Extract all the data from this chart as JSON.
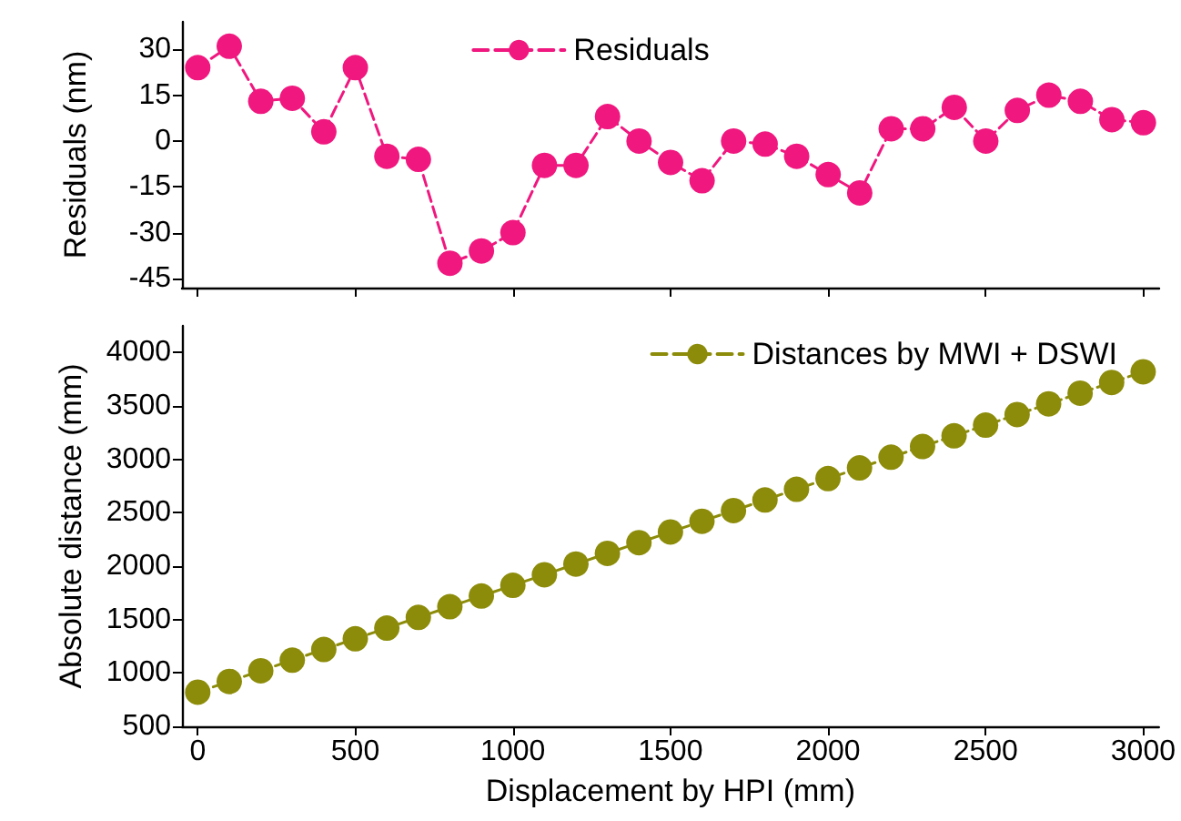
{
  "chart_data": [
    {
      "type": "line",
      "ylabel": "Residuals (nm)",
      "x": [
        0,
        100,
        200,
        300,
        400,
        500,
        600,
        700,
        800,
        900,
        1000,
        1100,
        1200,
        1300,
        1400,
        1500,
        1600,
        1700,
        1800,
        1900,
        2000,
        2100,
        2200,
        2300,
        2400,
        2500,
        2600,
        2700,
        2800,
        2900,
        3000
      ],
      "series": [
        {
          "name": "Residuals",
          "color": "#f0177f",
          "values": [
            24,
            31,
            13,
            14,
            3,
            24,
            -5,
            -6,
            -40,
            -36,
            -30,
            -8,
            -8,
            8,
            0,
            -7,
            -13,
            0,
            -1,
            -5,
            -11,
            -17,
            4,
            4,
            11,
            0,
            10,
            15,
            13,
            7,
            6
          ]
        }
      ],
      "xlim": [
        -50,
        3050
      ],
      "xticks": [
        0,
        500,
        1000,
        1500,
        2000,
        2500,
        3000
      ],
      "ylim": [
        -48,
        39
      ],
      "yticks": [
        -45,
        -30,
        -15,
        0,
        15,
        30
      ],
      "tick_labels": "y",
      "legend": "top",
      "marker": "circle",
      "line_style": "dashed",
      "grid": false
    },
    {
      "type": "line",
      "xlabel": "Displacement by HPI (mm)",
      "ylabel": "Absolute distance (mm)",
      "x": [
        0,
        100,
        200,
        300,
        400,
        500,
        600,
        700,
        800,
        900,
        1000,
        1100,
        1200,
        1300,
        1400,
        1500,
        1600,
        1700,
        1800,
        1900,
        2000,
        2100,
        2200,
        2300,
        2400,
        2500,
        2600,
        2700,
        2800,
        2900,
        3000
      ],
      "series": [
        {
          "name": "Distances by MWI + DSWI",
          "color": "#8c8c0a",
          "values": [
            820,
            920,
            1020,
            1120,
            1220,
            1320,
            1420,
            1520,
            1620,
            1720,
            1820,
            1920,
            2020,
            2120,
            2220,
            2320,
            2420,
            2520,
            2620,
            2720,
            2820,
            2920,
            3020,
            3120,
            3220,
            3320,
            3420,
            3520,
            3620,
            3720,
            3820
          ]
        }
      ],
      "xlim": [
        -50,
        3050
      ],
      "xticks": [
        0,
        500,
        1000,
        1500,
        2000,
        2500,
        3000
      ],
      "ylim": [
        500,
        4250
      ],
      "yticks": [
        500,
        1000,
        1500,
        2000,
        2500,
        3000,
        3500,
        4000
      ],
      "legend": "top right",
      "marker": "circle",
      "line_style": "dashed",
      "grid": false
    }
  ]
}
